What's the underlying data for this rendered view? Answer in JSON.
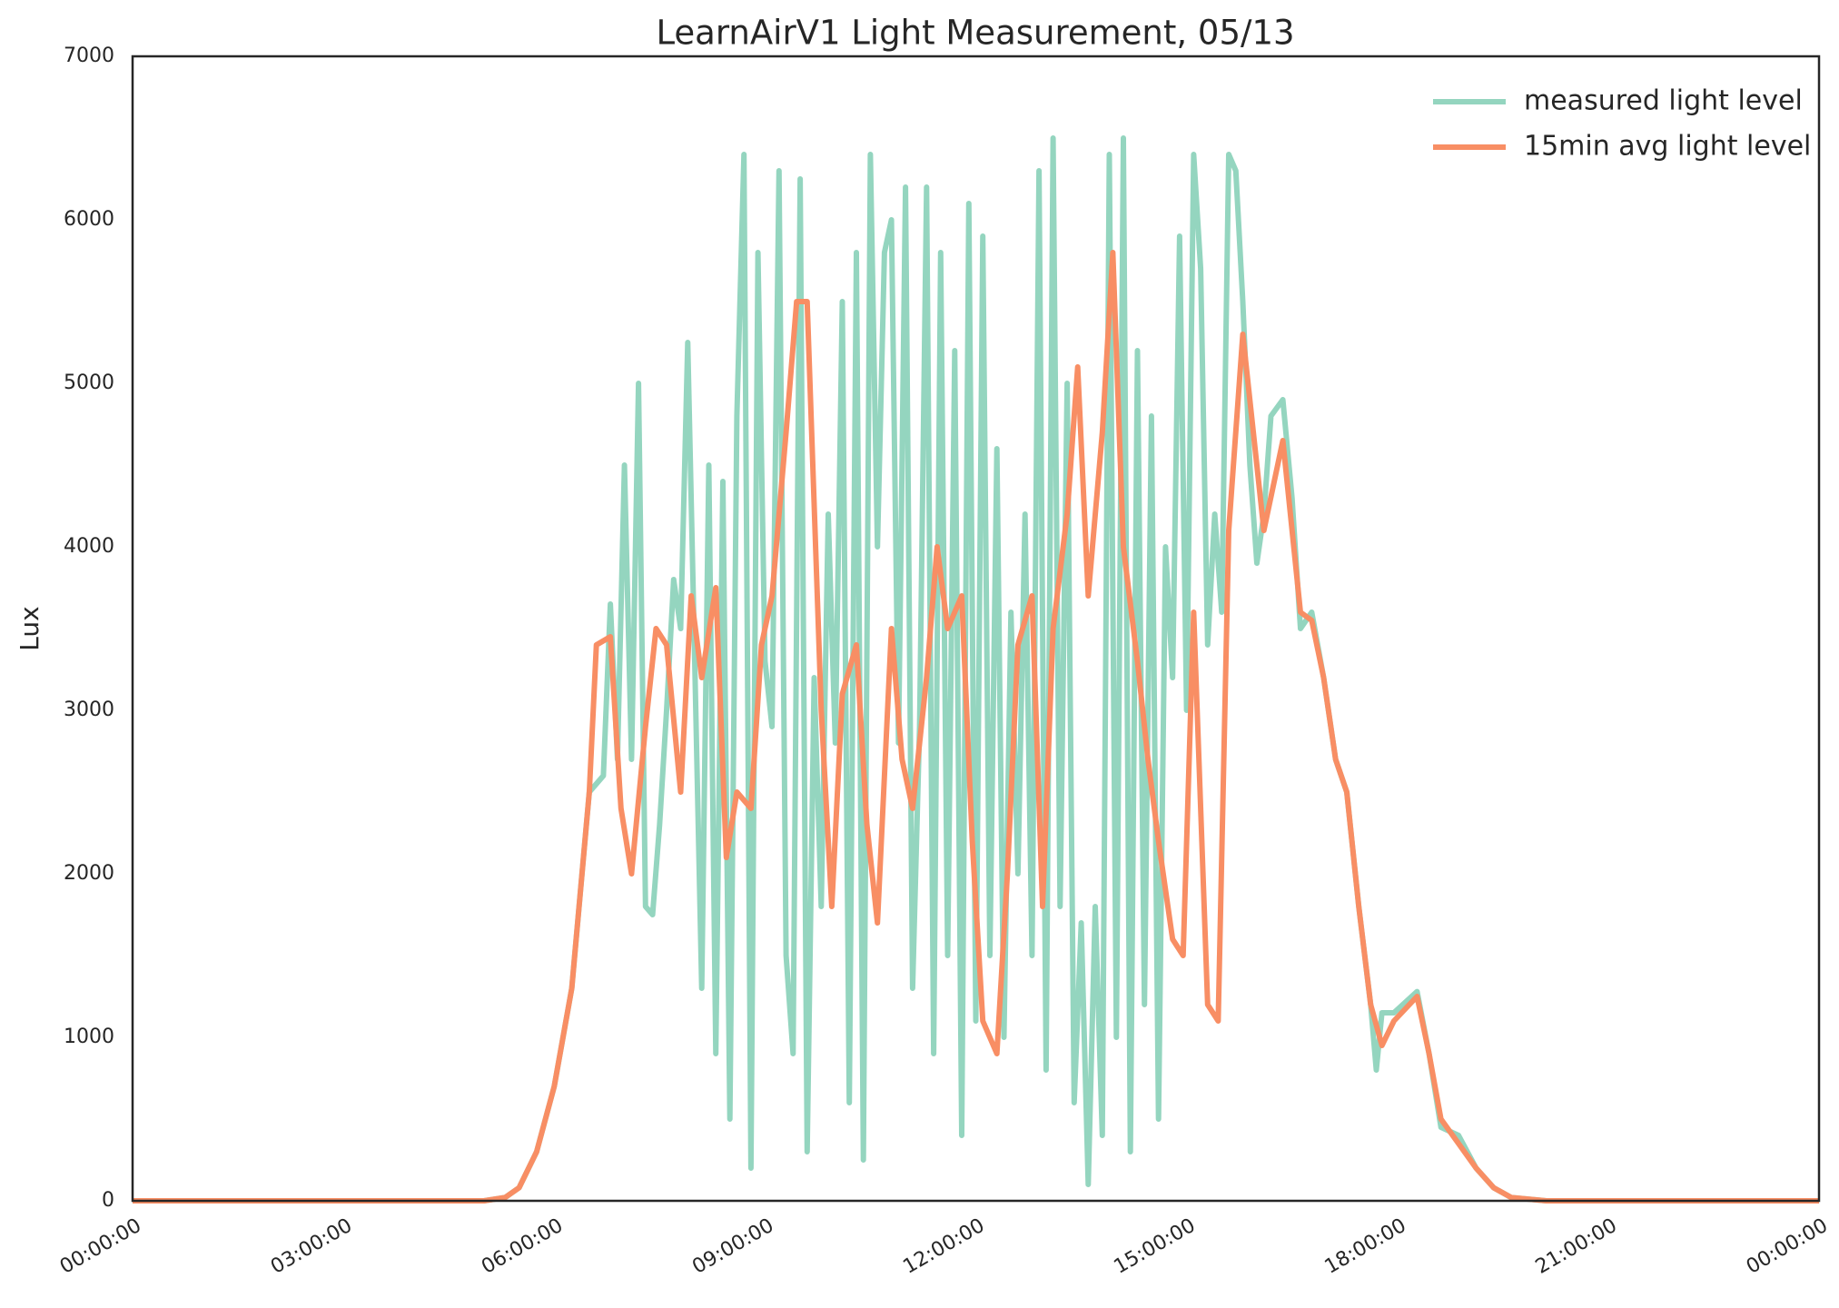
{
  "chart_data": {
    "type": "line",
    "title": "LearnAirV1 Light Measurement, 05/13",
    "ylabel": "Lux",
    "xlim": [
      0,
      24
    ],
    "ylim": [
      0,
      7000
    ],
    "xticks": [
      {
        "value": 0,
        "label": "00:00:00"
      },
      {
        "value": 3,
        "label": "03:00:00"
      },
      {
        "value": 6,
        "label": "06:00:00"
      },
      {
        "value": 9,
        "label": "09:00:00"
      },
      {
        "value": 12,
        "label": "12:00:00"
      },
      {
        "value": 15,
        "label": "15:00:00"
      },
      {
        "value": 18,
        "label": "18:00:00"
      },
      {
        "value": 21,
        "label": "21:00:00"
      },
      {
        "value": 24,
        "label": "00:00:00"
      }
    ],
    "yticks": [
      0,
      1000,
      2000,
      3000,
      4000,
      5000,
      6000,
      7000
    ],
    "grid": false,
    "legend": "upper right",
    "series": [
      {
        "name": "measured light level",
        "color": "#94d5bf",
        "x": [
          0,
          5,
          5.3,
          5.5,
          5.75,
          6,
          6.25,
          6.5,
          6.7,
          6.8,
          6.9,
          7,
          7.1,
          7.2,
          7.3,
          7.4,
          7.5,
          7.6,
          7.7,
          7.8,
          7.9,
          8,
          8.1,
          8.2,
          8.3,
          8.4,
          8.5,
          8.6,
          8.7,
          8.8,
          8.9,
          9,
          9.1,
          9.2,
          9.3,
          9.4,
          9.5,
          9.6,
          9.7,
          9.8,
          9.9,
          10,
          10.1,
          10.2,
          10.3,
          10.4,
          10.5,
          10.6,
          10.7,
          10.8,
          10.9,
          11,
          11.1,
          11.2,
          11.3,
          11.4,
          11.5,
          11.6,
          11.7,
          11.8,
          11.9,
          12,
          12.1,
          12.2,
          12.3,
          12.4,
          12.5,
          12.6,
          12.7,
          12.8,
          12.9,
          13,
          13.1,
          13.2,
          13.3,
          13.4,
          13.5,
          13.6,
          13.7,
          13.8,
          13.9,
          14,
          14.1,
          14.2,
          14.3,
          14.4,
          14.5,
          14.6,
          14.7,
          14.8,
          14.9,
          15,
          15.1,
          15.2,
          15.3,
          15.4,
          15.5,
          15.6,
          15.7,
          15.8,
          15.9,
          16,
          16.1,
          16.2,
          16.37,
          16.5,
          16.62,
          16.78,
          16.95,
          17.12,
          17.28,
          17.45,
          17.62,
          17.7,
          17.78,
          17.95,
          18.28,
          18.45,
          18.62,
          18.87,
          19.12,
          19.37,
          19.62,
          20.12,
          24
        ],
        "values": [
          0,
          0,
          20,
          80,
          300,
          700,
          1300,
          2500,
          2600,
          3650,
          2700,
          4500,
          2700,
          5000,
          1800,
          1750,
          2300,
          3000,
          3800,
          3500,
          5250,
          3300,
          1300,
          4500,
          900,
          4400,
          500,
          4800,
          6400,
          200,
          5800,
          3300,
          2900,
          6300,
          1500,
          900,
          6250,
          300,
          3200,
          1800,
          4200,
          2800,
          5500,
          600,
          5800,
          250,
          6400,
          4000,
          5800,
          6000,
          2800,
          6200,
          1300,
          2900,
          6200,
          900,
          5800,
          1500,
          5200,
          400,
          6100,
          1100,
          5900,
          1500,
          4600,
          1000,
          3600,
          2000,
          4200,
          1500,
          6300,
          800,
          6500,
          1800,
          5000,
          600,
          1700,
          100,
          1800,
          400,
          6400,
          1000,
          6500,
          300,
          5200,
          1200,
          4800,
          500,
          4000,
          3200,
          5900,
          3000,
          6400,
          5700,
          3400,
          4200,
          3600,
          6400,
          6300,
          5500,
          4500,
          3900,
          4200,
          4800,
          4900,
          4300,
          3500,
          3600,
          3200,
          2700,
          2500,
          1800,
          1200,
          800,
          1150,
          1150,
          1280,
          900,
          450,
          400,
          200,
          80,
          20,
          0,
          0
        ]
      },
      {
        "name": "15min avg light level",
        "color": "#f88e64",
        "x": [
          0,
          5,
          5.3,
          5.5,
          5.75,
          6,
          6.25,
          6.5,
          6.6,
          6.8,
          6.95,
          7.1,
          7.3,
          7.45,
          7.6,
          7.8,
          7.95,
          8.1,
          8.3,
          8.45,
          8.6,
          8.8,
          8.95,
          9.1,
          9.3,
          9.45,
          9.6,
          9.8,
          9.95,
          10.1,
          10.3,
          10.45,
          10.6,
          10.8,
          10.95,
          11.1,
          11.3,
          11.45,
          11.6,
          11.8,
          11.95,
          12.1,
          12.3,
          12.45,
          12.6,
          12.8,
          12.95,
          13.1,
          13.3,
          13.45,
          13.6,
          13.8,
          13.95,
          14.1,
          14.3,
          14.45,
          14.6,
          14.8,
          14.95,
          15.1,
          15.3,
          15.45,
          15.6,
          15.8,
          16.1,
          16.37,
          16.62,
          16.78,
          16.95,
          17.12,
          17.28,
          17.45,
          17.62,
          17.78,
          17.95,
          18.28,
          18.45,
          18.62,
          18.87,
          19.12,
          19.37,
          19.62,
          20.12,
          24
        ],
        "values": [
          0,
          0,
          20,
          80,
          300,
          700,
          1300,
          2500,
          3400,
          3450,
          2400,
          2000,
          2900,
          3500,
          3400,
          2500,
          3700,
          3200,
          3750,
          2100,
          2500,
          2400,
          3400,
          3700,
          4700,
          5500,
          5500,
          3000,
          1800,
          3100,
          3400,
          2300,
          1700,
          3500,
          2700,
          2400,
          3200,
          4000,
          3500,
          3700,
          2200,
          1100,
          900,
          2000,
          3400,
          3700,
          1800,
          3500,
          4200,
          5100,
          3700,
          4700,
          5800,
          4000,
          3300,
          2700,
          2200,
          1600,
          1500,
          3600,
          1200,
          1100,
          4100,
          5300,
          4100,
          4650,
          3600,
          3550,
          3200,
          2700,
          2500,
          1800,
          1200,
          950,
          1100,
          1250,
          900,
          500,
          350,
          200,
          80,
          20,
          0,
          0
        ]
      }
    ]
  }
}
